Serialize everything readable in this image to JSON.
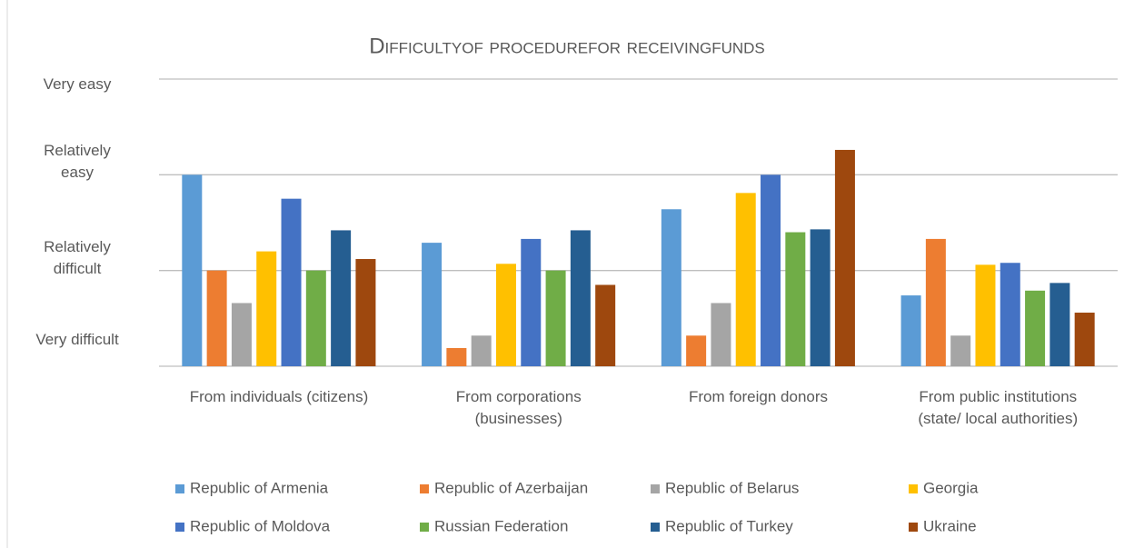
{
  "chart_data": {
    "type": "bar",
    "title": "Difficultyof procedurefor receivingfunds",
    "categories": [
      "From individuals (citizens)",
      "From corporations\n(businesses)",
      "From foreign donors",
      "From public institutions\n(state/ local authorities)"
    ],
    "ylim": [
      1,
      4
    ],
    "yticks": [
      {
        "value": 1,
        "label": "Very difficult"
      },
      {
        "value": 2,
        "label": "Relatively\ndifficult"
      },
      {
        "value": 3,
        "label": "Relatively\neasy"
      },
      {
        "value": 4,
        "label": "Very easy"
      }
    ],
    "grid": true,
    "legend": "bottom",
    "series": [
      {
        "name": "Republic of Armenia",
        "color": "#5b9bd5",
        "values": [
          3.0,
          2.29,
          2.64,
          1.74
        ]
      },
      {
        "name": "Republic of Azerbaijan",
        "color": "#ed7d31",
        "values": [
          2.0,
          1.19,
          1.32,
          2.33
        ]
      },
      {
        "name": "Republic of Belarus",
        "color": "#a5a5a5",
        "values": [
          1.66,
          1.32,
          1.66,
          1.32
        ]
      },
      {
        "name": "Georgia",
        "color": "#ffc000",
        "values": [
          2.2,
          2.07,
          2.81,
          2.06
        ]
      },
      {
        "name": "Republic of Moldova",
        "color": "#4472c4",
        "values": [
          2.75,
          2.33,
          3.0,
          2.08
        ]
      },
      {
        "name": "Russian Federation",
        "color": "#70ad47",
        "values": [
          2.0,
          2.0,
          2.4,
          1.79
        ]
      },
      {
        "name": "Republic of Turkey",
        "color": "#255e91",
        "values": [
          2.42,
          2.42,
          2.43,
          1.87
        ]
      },
      {
        "name": "Ukraine",
        "color": "#9e480e",
        "values": [
          2.12,
          1.85,
          3.26,
          1.56
        ]
      }
    ]
  }
}
